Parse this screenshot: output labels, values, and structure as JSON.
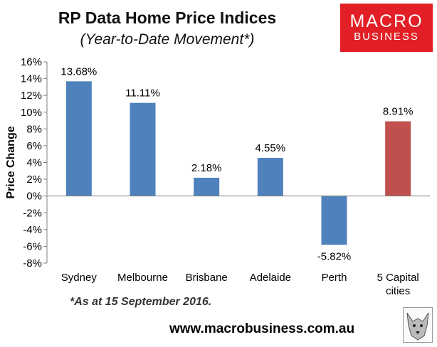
{
  "header": {
    "title": "RP Data Home Price Indices",
    "subtitle": "(Year-to-Date Movement*)"
  },
  "logo": {
    "line1": "MACRO",
    "line2": "BUSINESS",
    "color": "#e21f26"
  },
  "footnote": "*As at 15 September 2016.",
  "website": "www.macrobusiness.com.au",
  "chart_data": {
    "type": "bar",
    "title": "RP Data Home Price Indices",
    "subtitle": "(Year-to-Date Movement*)",
    "xlabel": "",
    "ylabel": "Price Change",
    "ylim": [
      -8,
      16
    ],
    "yticks": [
      -8,
      -6,
      -4,
      -2,
      0,
      2,
      4,
      6,
      8,
      10,
      12,
      14,
      16
    ],
    "ytick_labels": [
      "-8%",
      "-6%",
      "-4%",
      "-2%",
      "0%",
      "2%",
      "4%",
      "6%",
      "8%",
      "10%",
      "12%",
      "14%",
      "16%"
    ],
    "categories": [
      [
        "Sydney"
      ],
      [
        "Melbourne"
      ],
      [
        "Brisbane"
      ],
      [
        "Adelaide"
      ],
      [
        "Perth"
      ],
      [
        "5 Capital",
        "cities"
      ]
    ],
    "values": [
      13.68,
      11.11,
      2.18,
      4.55,
      -5.82,
      8.91
    ],
    "data_labels": [
      "13.68%",
      "11.11%",
      "2.18%",
      "4.55%",
      "-5.82%",
      "8.91%"
    ],
    "colors": [
      "#4f81bd",
      "#4f81bd",
      "#4f81bd",
      "#4f81bd",
      "#4f81bd",
      "#c0504d"
    ],
    "grid": false,
    "legend": "none"
  }
}
